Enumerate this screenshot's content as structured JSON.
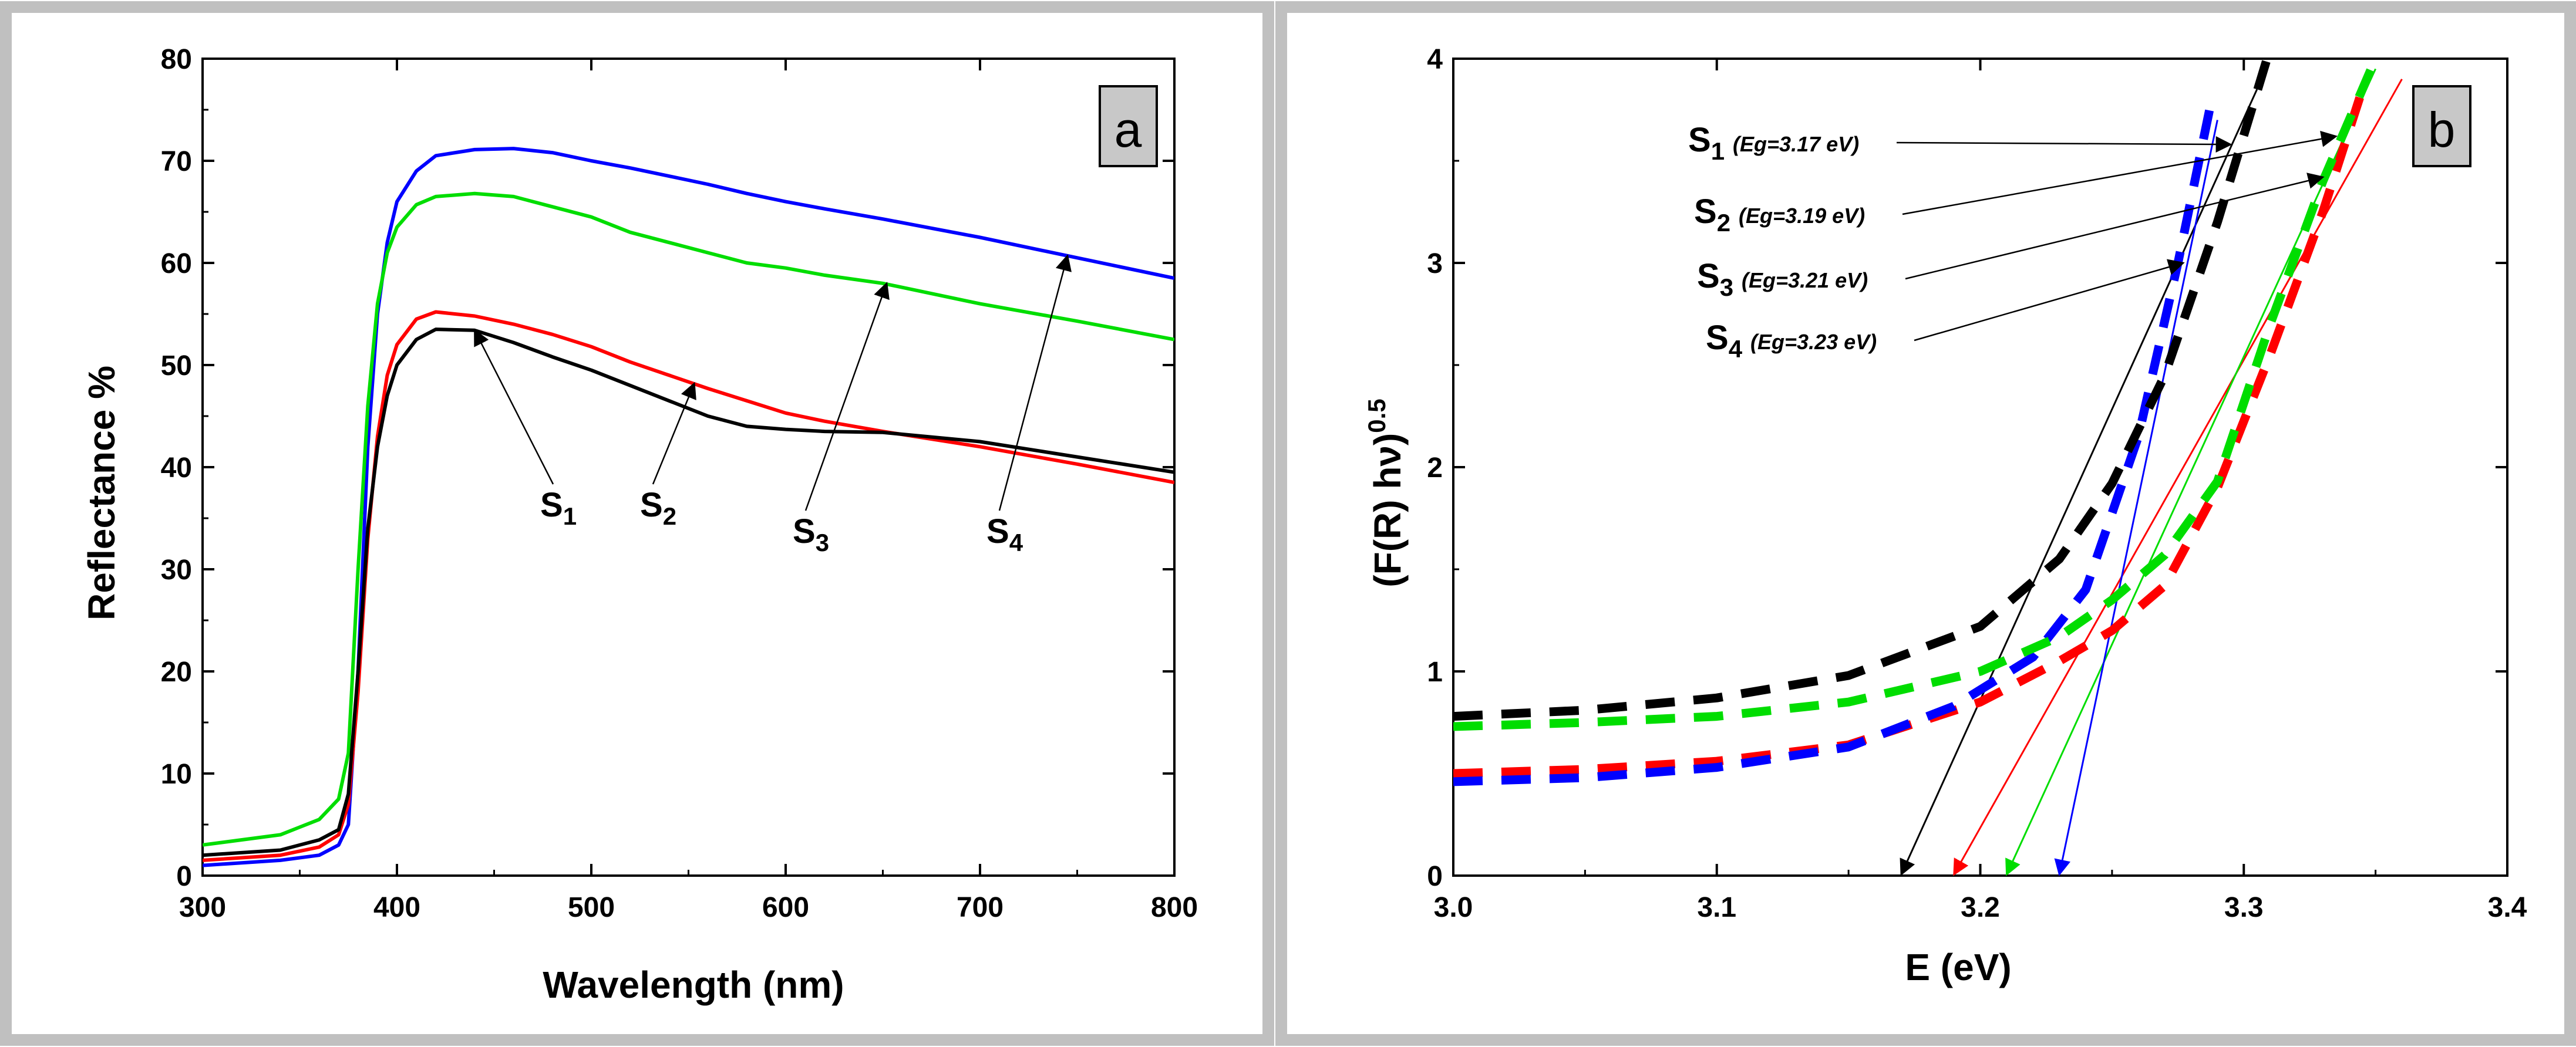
{
  "chart_data": [
    {
      "panel": "a",
      "type": "line",
      "xlabel": "Wavelength (nm)",
      "ylabel": "Reflectance %",
      "xlim": [
        300,
        800
      ],
      "ylim": [
        0,
        80
      ],
      "xticks": [
        300,
        400,
        500,
        600,
        700,
        800
      ],
      "yticks": [
        0,
        10,
        20,
        30,
        40,
        50,
        60,
        70,
        80
      ],
      "grid": false,
      "panel_label": "a",
      "series": [
        {
          "name": "S1",
          "color": "#000000",
          "x": [
            300,
            340,
            360,
            370,
            375,
            380,
            385,
            390,
            395,
            400,
            410,
            420,
            440,
            460,
            480,
            500,
            520,
            540,
            560,
            580,
            600,
            620,
            650,
            700,
            750,
            800
          ],
          "y": [
            2,
            2.5,
            3.5,
            4.5,
            8,
            20,
            34,
            42,
            47,
            50,
            52.5,
            53.5,
            53.4,
            52.2,
            50.8,
            49.5,
            48,
            46.5,
            45,
            44,
            43.7,
            43.5,
            43.4,
            42.5,
            41,
            39.5
          ]
        },
        {
          "name": "S2",
          "color": "#ff0000",
          "x": [
            300,
            340,
            360,
            370,
            375,
            380,
            385,
            390,
            395,
            400,
            410,
            420,
            440,
            460,
            480,
            500,
            520,
            540,
            560,
            580,
            600,
            620,
            650,
            700,
            750,
            800
          ],
          "y": [
            1.5,
            2,
            2.8,
            4,
            7,
            18,
            33,
            43,
            49,
            52,
            54.5,
            55.2,
            54.8,
            54,
            53,
            51.8,
            50.3,
            49,
            47.7,
            46.5,
            45.3,
            44.5,
            43.5,
            42,
            40.3,
            38.5
          ]
        },
        {
          "name": "S3",
          "color": "#00dd00",
          "x": [
            300,
            340,
            360,
            370,
            375,
            380,
            385,
            390,
            395,
            400,
            410,
            420,
            440,
            460,
            480,
            500,
            520,
            540,
            560,
            580,
            600,
            620,
            650,
            700,
            750,
            800
          ],
          "y": [
            3,
            4,
            5.5,
            7.5,
            12,
            30,
            46,
            56,
            61,
            63.5,
            65.7,
            66.5,
            66.8,
            66.5,
            65.5,
            64.5,
            63,
            62,
            61,
            60,
            59.5,
            58.8,
            58,
            56,
            54.3,
            52.5
          ]
        },
        {
          "name": "S4",
          "color": "#0000ff",
          "x": [
            300,
            340,
            360,
            370,
            375,
            380,
            385,
            390,
            395,
            400,
            410,
            420,
            440,
            460,
            480,
            500,
            520,
            540,
            560,
            580,
            600,
            620,
            650,
            700,
            750,
            800
          ],
          "y": [
            1,
            1.5,
            2,
            3,
            5,
            20,
            42,
            55,
            62,
            66,
            69,
            70.5,
            71.1,
            71.2,
            70.8,
            70,
            69.3,
            68.5,
            67.7,
            66.8,
            66,
            65.3,
            64.3,
            62.5,
            60.5,
            58.5
          ]
        }
      ],
      "labels": [
        "S",
        "S",
        "S",
        "S"
      ],
      "label_subscripts": [
        "1",
        "2",
        "3",
        "4"
      ],
      "annotation_targets": [
        {
          "series": "S1",
          "x": 440,
          "y": 53.4
        },
        {
          "series": "S2",
          "x": 553,
          "y": 48.2
        },
        {
          "series": "S3",
          "x": 652,
          "y": 58.0
        },
        {
          "series": "S4",
          "x": 745,
          "y": 60.7
        }
      ]
    },
    {
      "panel": "b",
      "type": "line",
      "xlabel": "E (eV)",
      "ylabel": "(F(R) hν)",
      "ylabel_superscript": "0.5",
      "xlim": [
        3.0,
        3.4
      ],
      "ylim": [
        0,
        4
      ],
      "xticks": [
        "3.0",
        "3.1",
        "3.2",
        "3.3",
        "3.4"
      ],
      "yticks": [
        "0",
        "1",
        "2",
        "3",
        "4"
      ],
      "grid": false,
      "panel_label": "b",
      "dashed_series": true,
      "series": [
        {
          "name": "S1",
          "color": "#000000",
          "x": [
            3.0,
            3.05,
            3.1,
            3.15,
            3.2,
            3.23,
            3.25,
            3.27,
            3.29,
            3.31
          ],
          "y": [
            0.78,
            0.81,
            0.87,
            0.98,
            1.22,
            1.55,
            1.92,
            2.45,
            3.2,
            4.05
          ]
        },
        {
          "name": "S2",
          "color": "#ff0000",
          "x": [
            3.0,
            3.05,
            3.1,
            3.15,
            3.2,
            3.23,
            3.25,
            3.27,
            3.29,
            3.31,
            3.33,
            3.345
          ],
          "y": [
            0.5,
            0.52,
            0.56,
            0.64,
            0.85,
            1.05,
            1.2,
            1.42,
            1.9,
            2.55,
            3.25,
            3.85
          ]
        },
        {
          "name": "S3",
          "color": "#00dd00",
          "x": [
            3.0,
            3.05,
            3.1,
            3.15,
            3.2,
            3.23,
            3.25,
            3.27,
            3.29,
            3.31,
            3.33,
            3.35
          ],
          "y": [
            0.73,
            0.75,
            0.78,
            0.85,
            1.0,
            1.17,
            1.35,
            1.57,
            1.93,
            2.7,
            3.4,
            4.0
          ]
        },
        {
          "name": "S4",
          "color": "#0000ff",
          "x": [
            3.0,
            3.05,
            3.1,
            3.15,
            3.19,
            3.22,
            3.24,
            3.26,
            3.275,
            3.287
          ],
          "y": [
            0.46,
            0.48,
            0.53,
            0.63,
            0.83,
            1.07,
            1.4,
            2.15,
            3.0,
            3.75
          ]
        }
      ],
      "tangents": [
        {
          "series": "S1",
          "color": "#000000",
          "eg": 3.17,
          "x2": 3.305,
          "y2": 3.85
        },
        {
          "series": "S2",
          "color": "#ff0000",
          "eg": 3.19,
          "x2": 3.36,
          "y2": 3.9
        },
        {
          "series": "S3",
          "color": "#00dd00",
          "eg": 3.21,
          "x2": 3.35,
          "y2": 3.95
        },
        {
          "series": "S4",
          "color": "#0000ff",
          "eg": 3.23,
          "x2": 3.29,
          "y2": 3.7
        }
      ],
      "labels": [
        "S",
        "S",
        "S",
        "S"
      ],
      "label_subscripts": [
        "1",
        "2",
        "3",
        "4"
      ],
      "label_notes": [
        "(Eg=3.17 eV)",
        "(Eg=3.19 eV)",
        "(Eg=3.21 eV)",
        "(Eg=3.23 eV)"
      ],
      "annotation_targets": [
        {
          "series": "S1",
          "x": 3.295,
          "y": 3.58
        },
        {
          "series": "S2",
          "x": 3.335,
          "y": 3.62
        },
        {
          "series": "S3",
          "x": 3.33,
          "y": 3.42
        },
        {
          "series": "S4",
          "x": 3.277,
          "y": 3.0
        }
      ]
    }
  ]
}
